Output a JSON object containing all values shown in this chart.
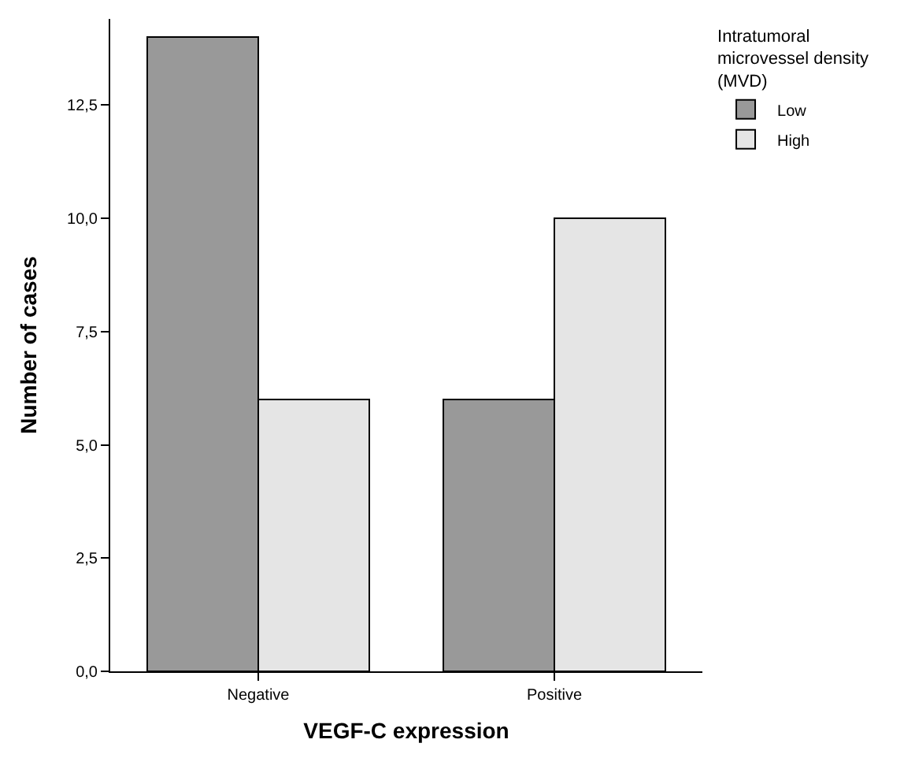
{
  "chart_data": {
    "type": "bar",
    "xlabel": "VEGF-C expression",
    "ylabel": "Number of cases",
    "legend_title": "Intratumoral microvessel density (MVD)",
    "categories": [
      "Negative",
      "Positive"
    ],
    "series": [
      {
        "name": "Low",
        "color": "#999999",
        "values": [
          14,
          6
        ]
      },
      {
        "name": "High",
        "color": "#e5e5e5",
        "values": [
          6,
          10
        ]
      }
    ],
    "ylim": [
      0,
      14.4
    ],
    "yticks": [
      {
        "value": 0,
        "label": "0,0"
      },
      {
        "value": 2.5,
        "label": "2,5"
      },
      {
        "value": 5,
        "label": "5,0"
      },
      {
        "value": 7.5,
        "label": "7,5"
      },
      {
        "value": 10,
        "label": "10,0"
      },
      {
        "value": 12.5,
        "label": "12,5"
      }
    ],
    "legend": "top right"
  }
}
